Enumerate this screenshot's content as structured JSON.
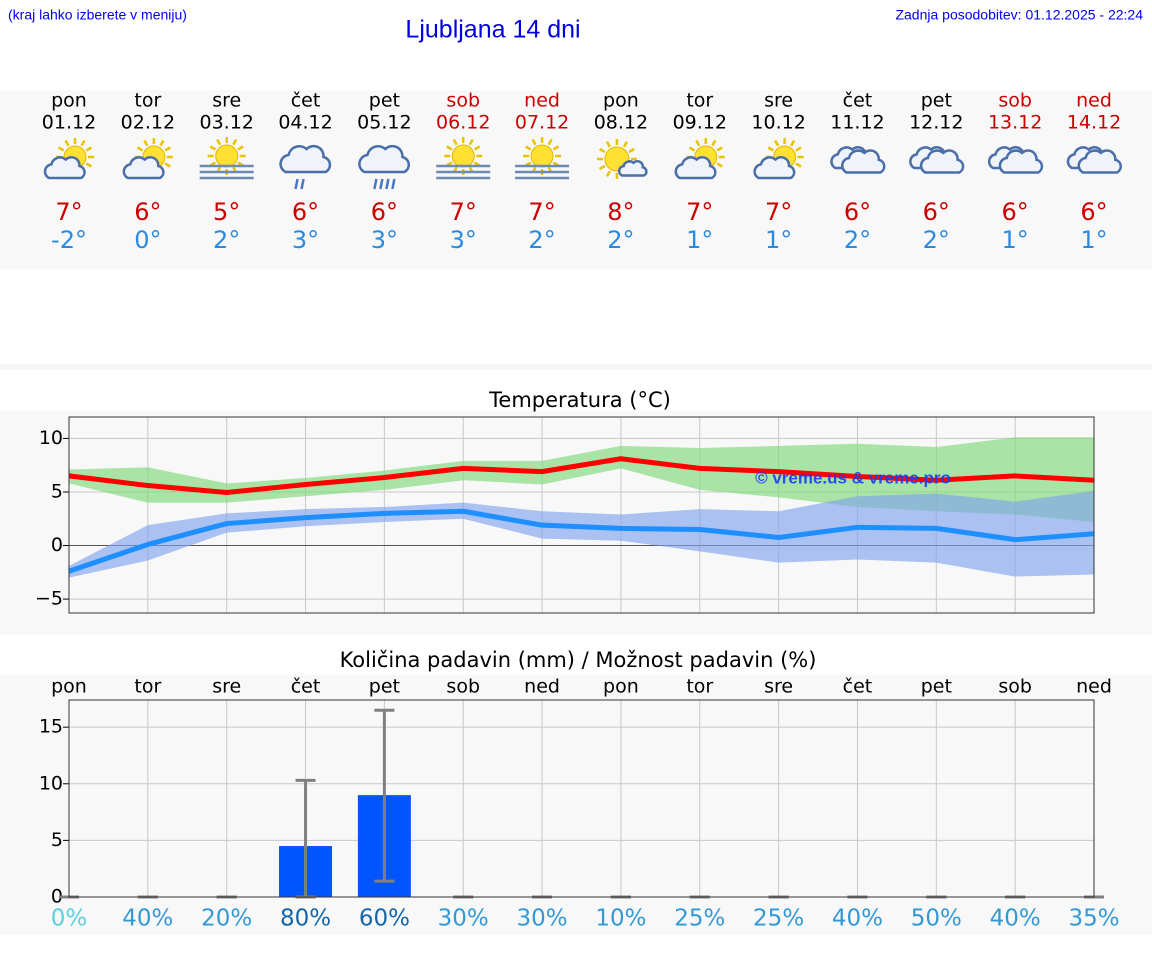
{
  "header": {
    "note": "(kraj lahko izberete v meniju)",
    "title": "Ljubljana 14 dni",
    "updated": "Zadnja posodobitev: 01.12.2025 - 22:24"
  },
  "forecast": [
    {
      "weekday": "pon",
      "date": "01.12",
      "icon": "sun-cloud",
      "max": "7°",
      "min": "-2°",
      "weekend": false
    },
    {
      "weekday": "tor",
      "date": "02.12",
      "icon": "sun-cloud",
      "max": "6°",
      "min": "0°",
      "weekend": false
    },
    {
      "weekday": "sre",
      "date": "03.12",
      "icon": "sun-fog",
      "max": "5°",
      "min": "2°",
      "weekend": false
    },
    {
      "weekday": "čet",
      "date": "04.12",
      "icon": "rain",
      "max": "6°",
      "min": "3°",
      "weekend": false
    },
    {
      "weekday": "pet",
      "date": "05.12",
      "icon": "rain",
      "max": "6°",
      "min": "3°",
      "weekend": false
    },
    {
      "weekday": "sob",
      "date": "06.12",
      "icon": "sun-fog",
      "max": "7°",
      "min": "3°",
      "weekend": true
    },
    {
      "weekday": "ned",
      "date": "07.12",
      "icon": "sun-fog",
      "max": "7°",
      "min": "2°",
      "weekend": true
    },
    {
      "weekday": "pon",
      "date": "08.12",
      "icon": "sun-small-cloud",
      "max": "8°",
      "min": "2°",
      "weekend": false
    },
    {
      "weekday": "tor",
      "date": "09.12",
      "icon": "sun-cloud",
      "max": "7°",
      "min": "1°",
      "weekend": false
    },
    {
      "weekday": "sre",
      "date": "10.12",
      "icon": "sun-cloud",
      "max": "7°",
      "min": "1°",
      "weekend": false
    },
    {
      "weekday": "čet",
      "date": "11.12",
      "icon": "cloud",
      "max": "6°",
      "min": "2°",
      "weekend": false
    },
    {
      "weekday": "pet",
      "date": "12.12",
      "icon": "cloud",
      "max": "6°",
      "min": "2°",
      "weekend": false
    },
    {
      "weekday": "sob",
      "date": "13.12",
      "icon": "cloud",
      "max": "6°",
      "min": "1°",
      "weekend": true
    },
    {
      "weekday": "ned",
      "date": "14.12",
      "icon": "cloud",
      "max": "6°",
      "min": "1°",
      "weekend": true
    }
  ],
  "chart_data": [
    {
      "type": "line",
      "title": "Temperatura (°C)",
      "ylim": [
        -6.3,
        12
      ],
      "yticks": [
        {
          "value": -5,
          "label": "−5"
        },
        0,
        5,
        10
      ],
      "grid": true,
      "annotation": "© vreme.us & vreme.pro",
      "series": [
        {
          "color": "#ff0000",
          "values": [
            6.5,
            5.6,
            4.95,
            5.7,
            6.35,
            7.2,
            6.9,
            8.1,
            7.2,
            6.9,
            6.45,
            6.1,
            6.5,
            6.1
          ],
          "band_color": "#7ed87a",
          "band_upper": [
            7.1,
            7.3,
            5.8,
            6.3,
            7.0,
            7.9,
            7.9,
            9.3,
            9.1,
            9.3,
            9.5,
            9.2,
            10.1,
            10.1
          ],
          "band_lower": [
            5.8,
            4.0,
            4.0,
            4.6,
            5.2,
            6.1,
            5.7,
            7.2,
            5.2,
            4.5,
            3.6,
            3.2,
            2.9,
            2.2
          ]
        },
        {
          "color": "#1e8fff",
          "values": [
            -2.4,
            0.1,
            2.05,
            2.6,
            3.0,
            3.2,
            1.9,
            1.6,
            1.5,
            0.75,
            1.7,
            1.6,
            0.55,
            1.1
          ],
          "band_color": "#7fa3ec",
          "band_upper": [
            -1.9,
            1.9,
            3.0,
            3.4,
            3.6,
            4.0,
            3.2,
            2.9,
            3.4,
            3.2,
            4.6,
            4.85,
            4.1,
            5.1
          ],
          "band_lower": [
            -3.0,
            -1.4,
            1.2,
            1.8,
            2.2,
            2.5,
            0.65,
            0.45,
            -0.55,
            -1.6,
            -1.3,
            -1.6,
            -2.9,
            -2.7
          ]
        }
      ]
    },
    {
      "type": "bar",
      "title": "Količina padavin (mm) / Možnost padavin (%)",
      "categories": [
        "pon",
        "tor",
        "sre",
        "čet",
        "pet",
        "sob",
        "ned",
        "pon",
        "tor",
        "sre",
        "čet",
        "pet",
        "sob",
        "ned"
      ],
      "values": [
        0,
        0,
        0,
        4.5,
        9.0,
        0,
        0,
        0,
        0,
        0,
        0,
        0,
        0,
        0
      ],
      "color": "#0055ff",
      "err_low": [
        0,
        0,
        0,
        0,
        1.4,
        0,
        0,
        0,
        0,
        0,
        0,
        0,
        0,
        0
      ],
      "err_high": [
        0,
        0,
        0,
        10.3,
        16.5,
        0,
        0,
        0,
        0,
        0,
        0,
        0,
        0,
        0
      ],
      "error_color": "#808080",
      "ylim": [
        0,
        17.4
      ],
      "yticks": [
        0,
        5,
        10,
        15
      ],
      "grid": true,
      "probability": [
        0,
        40,
        20,
        80,
        60,
        30,
        30,
        10,
        25,
        25,
        40,
        50,
        40,
        35
      ],
      "probability_labels": [
        "0%",
        "40%",
        "20%",
        "80%",
        "60%",
        "30%",
        "30%",
        "10%",
        "25%",
        "25%",
        "40%",
        "50%",
        "40%",
        "35%"
      ],
      "probability_colors": [
        "#5bcfe0",
        "#3399d4",
        "#3399d4",
        "#1466a8",
        "#1466a8",
        "#3399d4",
        "#3399d4",
        "#3399d4",
        "#3399d4",
        "#3399d4",
        "#3399d4",
        "#3399d4",
        "#3399d4",
        "#3399d4"
      ]
    }
  ]
}
